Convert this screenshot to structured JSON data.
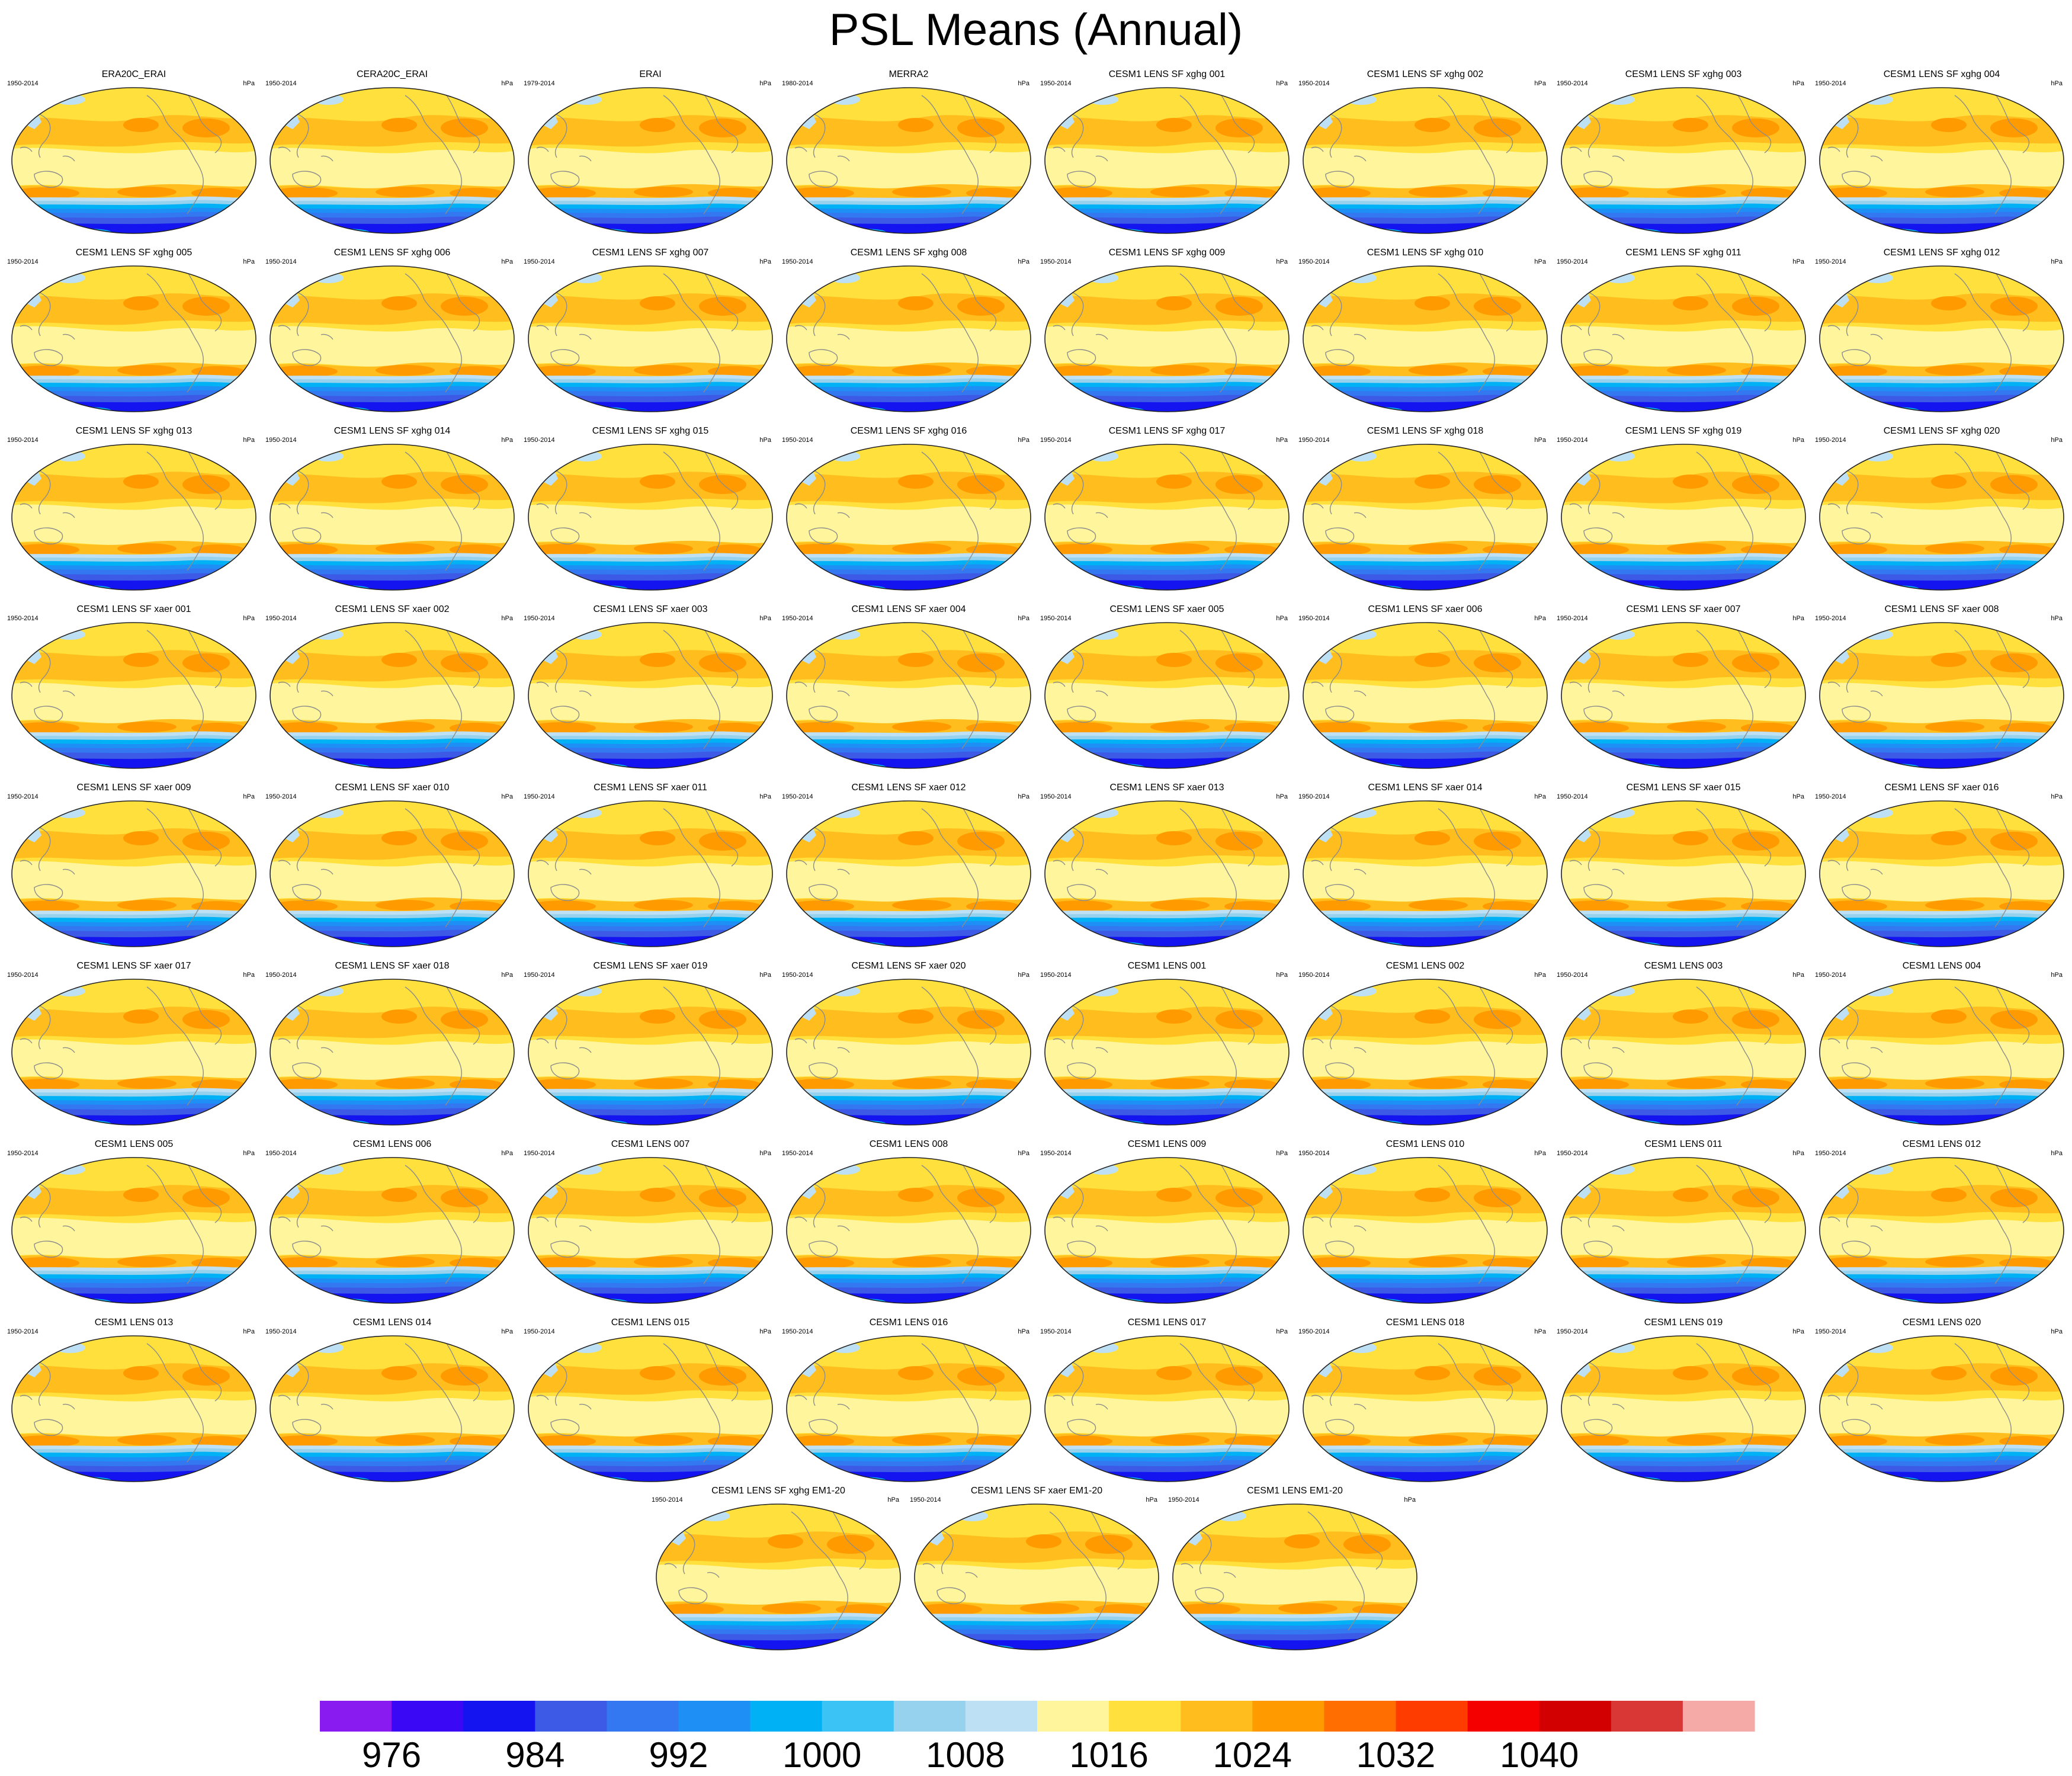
{
  "title": "PSL Means (Annual)",
  "units": "hPa",
  "colors": {
    "levels": [
      "#8a1bf0",
      "#3a08f5",
      "#1414f0",
      "#3c5ae6",
      "#3378f0",
      "#1e8ff5",
      "#00b2f5",
      "#3cc3f5",
      "#96d2ee",
      "#bde0f5",
      "#fff59c",
      "#ffe03c",
      "#ffbe1e",
      "#ff9b00",
      "#ff6e00",
      "#ff3c00",
      "#f50000",
      "#d20000",
      "#d93636",
      "#f5aaa8"
    ],
    "coast": "#8c8c8c"
  },
  "panels": [
    {
      "title": "ERA20C_ERAI",
      "years": "1950-2014"
    },
    {
      "title": "CERA20C_ERAI",
      "years": "1950-2014"
    },
    {
      "title": "ERAI",
      "years": "1979-2014"
    },
    {
      "title": "MERRA2",
      "years": "1980-2014"
    },
    {
      "title": "CESM1 LENS SF xghg 001",
      "years": "1950-2014"
    },
    {
      "title": "CESM1 LENS SF xghg 002",
      "years": "1950-2014"
    },
    {
      "title": "CESM1 LENS SF xghg 003",
      "years": "1950-2014"
    },
    {
      "title": "CESM1 LENS SF xghg 004",
      "years": "1950-2014"
    },
    {
      "title": "CESM1 LENS SF xghg 005",
      "years": "1950-2014"
    },
    {
      "title": "CESM1 LENS SF xghg 006",
      "years": "1950-2014"
    },
    {
      "title": "CESM1 LENS SF xghg 007",
      "years": "1950-2014"
    },
    {
      "title": "CESM1 LENS SF xghg 008",
      "years": "1950-2014"
    },
    {
      "title": "CESM1 LENS SF xghg 009",
      "years": "1950-2014"
    },
    {
      "title": "CESM1 LENS SF xghg 010",
      "years": "1950-2014"
    },
    {
      "title": "CESM1 LENS SF xghg 011",
      "years": "1950-2014"
    },
    {
      "title": "CESM1 LENS SF xghg 012",
      "years": "1950-2014"
    },
    {
      "title": "CESM1 LENS SF xghg 013",
      "years": "1950-2014"
    },
    {
      "title": "CESM1 LENS SF xghg 014",
      "years": "1950-2014"
    },
    {
      "title": "CESM1 LENS SF xghg 015",
      "years": "1950-2014"
    },
    {
      "title": "CESM1 LENS SF xghg 016",
      "years": "1950-2014"
    },
    {
      "title": "CESM1 LENS SF xghg 017",
      "years": "1950-2014"
    },
    {
      "title": "CESM1 LENS SF xghg 018",
      "years": "1950-2014"
    },
    {
      "title": "CESM1 LENS SF xghg 019",
      "years": "1950-2014"
    },
    {
      "title": "CESM1 LENS SF xghg 020",
      "years": "1950-2014"
    },
    {
      "title": "CESM1 LENS SF xaer 001",
      "years": "1950-2014"
    },
    {
      "title": "CESM1 LENS SF xaer 002",
      "years": "1950-2014"
    },
    {
      "title": "CESM1 LENS SF xaer 003",
      "years": "1950-2014"
    },
    {
      "title": "CESM1 LENS SF xaer 004",
      "years": "1950-2014"
    },
    {
      "title": "CESM1 LENS SF xaer 005",
      "years": "1950-2014"
    },
    {
      "title": "CESM1 LENS SF xaer 006",
      "years": "1950-2014"
    },
    {
      "title": "CESM1 LENS SF xaer 007",
      "years": "1950-2014"
    },
    {
      "title": "CESM1 LENS SF xaer 008",
      "years": "1950-2014"
    },
    {
      "title": "CESM1 LENS SF xaer 009",
      "years": "1950-2014"
    },
    {
      "title": "CESM1 LENS SF xaer 010",
      "years": "1950-2014"
    },
    {
      "title": "CESM1 LENS SF xaer 011",
      "years": "1950-2014"
    },
    {
      "title": "CESM1 LENS SF xaer 012",
      "years": "1950-2014"
    },
    {
      "title": "CESM1 LENS SF xaer 013",
      "years": "1950-2014"
    },
    {
      "title": "CESM1 LENS SF xaer 014",
      "years": "1950-2014"
    },
    {
      "title": "CESM1 LENS SF xaer 015",
      "years": "1950-2014"
    },
    {
      "title": "CESM1 LENS SF xaer 016",
      "years": "1950-2014"
    },
    {
      "title": "CESM1 LENS SF xaer 017",
      "years": "1950-2014"
    },
    {
      "title": "CESM1 LENS SF xaer 018",
      "years": "1950-2014"
    },
    {
      "title": "CESM1 LENS SF xaer 019",
      "years": "1950-2014"
    },
    {
      "title": "CESM1 LENS SF xaer 020",
      "years": "1950-2014"
    },
    {
      "title": "CESM1 LENS 001",
      "years": "1950-2014"
    },
    {
      "title": "CESM1 LENS 002",
      "years": "1950-2014"
    },
    {
      "title": "CESM1 LENS 003",
      "years": "1950-2014"
    },
    {
      "title": "CESM1 LENS 004",
      "years": "1950-2014"
    },
    {
      "title": "CESM1 LENS 005",
      "years": "1950-2014"
    },
    {
      "title": "CESM1 LENS 006",
      "years": "1950-2014"
    },
    {
      "title": "CESM1 LENS 007",
      "years": "1950-2014"
    },
    {
      "title": "CESM1 LENS 008",
      "years": "1950-2014"
    },
    {
      "title": "CESM1 LENS 009",
      "years": "1950-2014"
    },
    {
      "title": "CESM1 LENS 010",
      "years": "1950-2014"
    },
    {
      "title": "CESM1 LENS 011",
      "years": "1950-2014"
    },
    {
      "title": "CESM1 LENS 012",
      "years": "1950-2014"
    },
    {
      "title": "CESM1 LENS 013",
      "years": "1950-2014"
    },
    {
      "title": "CESM1 LENS 014",
      "years": "1950-2014"
    },
    {
      "title": "CESM1 LENS 015",
      "years": "1950-2014"
    },
    {
      "title": "CESM1 LENS 016",
      "years": "1950-2014"
    },
    {
      "title": "CESM1 LENS 017",
      "years": "1950-2014"
    },
    {
      "title": "CESM1 LENS 018",
      "years": "1950-2014"
    },
    {
      "title": "CESM1 LENS 019",
      "years": "1950-2014"
    },
    {
      "title": "CESM1 LENS 020",
      "years": "1950-2014"
    },
    {
      "title": "CESM1 LENS SF xghg EM1-20",
      "years": "1950-2014"
    },
    {
      "title": "CESM1 LENS SF xaer EM1-20",
      "years": "1950-2014"
    },
    {
      "title": "CESM1 LENS EM1-20",
      "years": "1950-2014"
    }
  ],
  "chart_data": {
    "type": "heatmap",
    "title": "PSL Means (Annual)",
    "units": "hPa",
    "projection": "Robinson",
    "colorbar": {
      "orientation": "horizontal",
      "contour_levels": [
        972,
        974,
        976,
        978,
        980,
        982,
        984,
        986,
        988,
        990,
        992,
        994,
        996,
        998,
        1000,
        1002,
        1004,
        1006,
        1008,
        1010,
        1012,
        1014,
        1016,
        1018,
        1020,
        1022,
        1024,
        1026,
        1028,
        1030,
        1032,
        1034,
        1036,
        1038,
        1040,
        1042
      ],
      "tick_labels": [
        "976",
        "984",
        "992",
        "1000",
        "1008",
        "1016",
        "1024",
        "1032",
        "1040"
      ],
      "tick_values": [
        976,
        984,
        992,
        1000,
        1008,
        1016,
        1024,
        1032,
        1040
      ],
      "display_min": 972,
      "display_max": 1052
    },
    "panel_count": 67
  }
}
